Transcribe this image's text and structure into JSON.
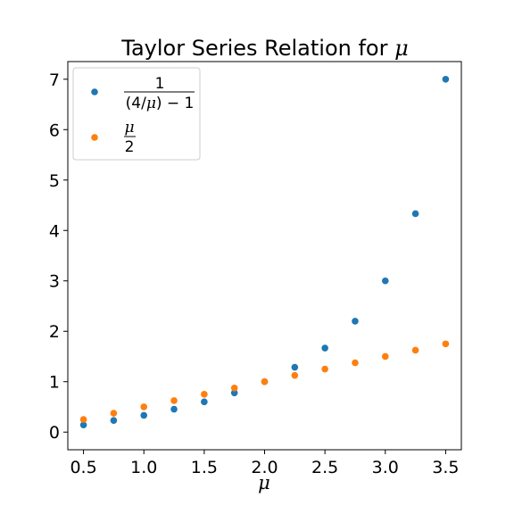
{
  "chart_data": {
    "type": "scatter",
    "title_prefix": "Taylor Series Relation for ",
    "title_symbol": "μ",
    "xlabel": "μ",
    "ylabel": "",
    "xlim": [
      0.37,
      3.63
    ],
    "ylim": [
      -0.35,
      7.35
    ],
    "xticks": [
      0.5,
      1.0,
      1.5,
      2.0,
      2.5,
      3.0,
      3.5
    ],
    "xtick_labels": [
      "0.5",
      "1.0",
      "1.5",
      "2.0",
      "2.5",
      "3.0",
      "3.5"
    ],
    "yticks": [
      0,
      1,
      2,
      3,
      4,
      5,
      6,
      7
    ],
    "ytick_labels": [
      "0",
      "1",
      "2",
      "3",
      "4",
      "5",
      "6",
      "7"
    ],
    "grid": false,
    "legend_position": "top-left",
    "x": [
      0.5,
      0.75,
      1.0,
      1.25,
      1.5,
      1.75,
      2.0,
      2.25,
      2.5,
      2.75,
      3.0,
      3.25,
      3.5
    ],
    "series": [
      {
        "legend": {
          "numerator": "1",
          "den_open": "(4/",
          "den_mu": "μ",
          "den_close": ") − 1"
        },
        "color": "#1f77b4",
        "values": [
          0.143,
          0.231,
          0.333,
          0.455,
          0.6,
          0.778,
          1.0,
          1.286,
          1.667,
          2.2,
          3.0,
          4.333,
          7.0
        ]
      },
      {
        "legend": {
          "numerator": "μ",
          "denominator": "2"
        },
        "color": "#ff7f0e",
        "values": [
          0.25,
          0.375,
          0.5,
          0.625,
          0.75,
          0.875,
          1.0,
          1.125,
          1.25,
          1.375,
          1.5,
          1.625,
          1.75
        ]
      }
    ]
  }
}
